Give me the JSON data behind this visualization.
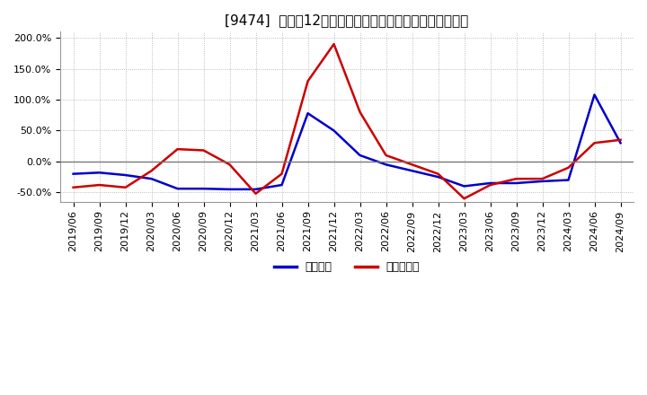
{
  "title": "[9474]  利益の12か月移動合計の対前年同期増減率の推移",
  "legend_labels": [
    "経常利益",
    "当期純利益"
  ],
  "line_colors": [
    "#0000cc",
    "#cc0000"
  ],
  "x_labels": [
    "2019/06",
    "2019/09",
    "2019/12",
    "2020/03",
    "2020/06",
    "2020/09",
    "2020/12",
    "2021/03",
    "2021/06",
    "2021/09",
    "2021/12",
    "2022/03",
    "2022/06",
    "2022/09",
    "2022/12",
    "2023/03",
    "2023/06",
    "2023/09",
    "2023/12",
    "2024/03",
    "2024/06",
    "2024/09"
  ],
  "operating_profit": [
    -20,
    -18,
    -22,
    -28,
    -44,
    -44,
    -45,
    -45,
    -38,
    78,
    50,
    10,
    -5,
    -15,
    -25,
    -40,
    -35,
    -35,
    -32,
    -30,
    108,
    30
  ],
  "net_profit": [
    -42,
    -38,
    -42,
    -15,
    20,
    18,
    -5,
    -52,
    -20,
    130,
    190,
    80,
    10,
    -5,
    -20,
    -60,
    -38,
    -28,
    -28,
    -10,
    30,
    35
  ],
  "ylim": [
    -65,
    210
  ],
  "yticks": [
    -50,
    0,
    50,
    100,
    150,
    200
  ],
  "background_color": "#ffffff",
  "grid_color": "#aaaaaa",
  "title_fontsize": 11,
  "tick_fontsize": 8
}
